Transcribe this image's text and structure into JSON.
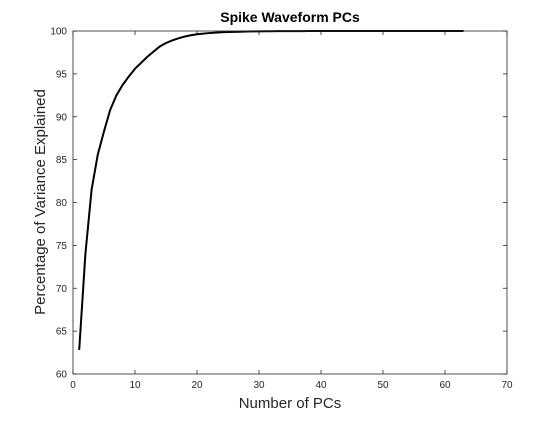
{
  "chart_data": {
    "type": "line",
    "title": "Spike Waveform PCs",
    "xlabel": "Number of PCs",
    "ylabel": "Percentage of Variance Explained",
    "xlim": [
      0,
      70
    ],
    "ylim": [
      60,
      100
    ],
    "xticks": [
      0,
      10,
      20,
      30,
      40,
      50,
      60,
      70
    ],
    "yticks": [
      60,
      65,
      70,
      75,
      80,
      85,
      90,
      95,
      100
    ],
    "xtick_labels": [
      "0",
      "10",
      "20",
      "30",
      "40",
      "50",
      "60",
      "70"
    ],
    "ytick_labels": [
      "60",
      "65",
      "70",
      "75",
      "80",
      "85",
      "90",
      "95",
      "100"
    ],
    "grid": false,
    "line_color": "#000000",
    "series": [
      {
        "x": [
          1,
          2,
          3,
          4,
          5,
          6,
          7,
          8,
          9,
          10,
          11,
          12,
          13,
          14,
          15,
          16,
          17,
          18,
          19,
          20,
          21,
          22,
          23,
          24,
          25,
          26,
          27,
          28,
          29,
          30,
          31,
          32,
          33,
          34,
          35,
          36,
          37,
          38,
          39,
          40,
          41,
          42,
          43,
          44,
          45,
          46,
          47,
          48,
          49,
          50,
          51,
          52,
          53,
          54,
          55,
          56,
          57,
          58,
          59,
          60,
          61,
          62,
          63
        ],
        "values": [
          62.8,
          74.0,
          81.5,
          85.6,
          88.3,
          90.8,
          92.5,
          93.7,
          94.7,
          95.6,
          96.3,
          97.0,
          97.6,
          98.2,
          98.6,
          98.9,
          99.15,
          99.35,
          99.5,
          99.62,
          99.7,
          99.76,
          99.81,
          99.85,
          99.88,
          99.9,
          99.92,
          99.94,
          99.95,
          99.96,
          99.97,
          99.975,
          99.98,
          99.985,
          99.99,
          99.99,
          99.99,
          99.995,
          99.995,
          99.995,
          99.997,
          99.997,
          99.998,
          99.998,
          99.998,
          99.999,
          99.999,
          99.999,
          99.999,
          99.999,
          100,
          100,
          100,
          100,
          100,
          100,
          100,
          100,
          100,
          100,
          100,
          100,
          100
        ]
      }
    ]
  }
}
